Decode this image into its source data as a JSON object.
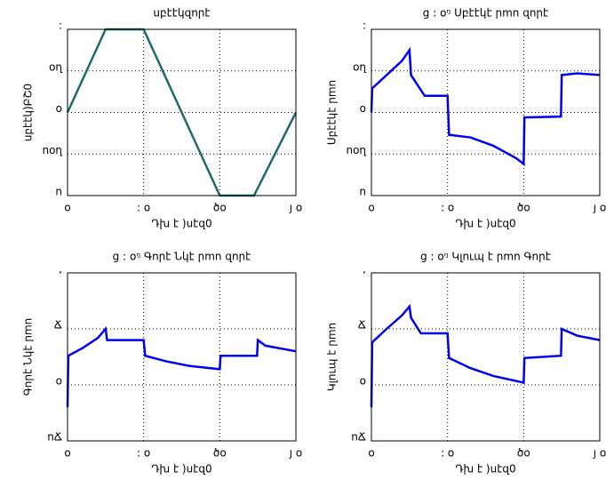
{
  "chart_data": [
    {
      "type": "line",
      "title": "սբէէկզորէ",
      "xlabel": "Դխ է )սէզ0",
      "ylabel": "սբէէկ)ԲՇ0",
      "x": [
        0,
        5,
        10,
        20,
        24.5,
        30
      ],
      "series": [
        {
          "color": "#1f6a6a",
          "values": [
            0,
            1,
            1,
            -1,
            -1,
            0
          ]
        }
      ],
      "xlim": [
        0,
        30
      ],
      "ylim": [
        -1,
        1
      ],
      "xticks": [
        {
          "value": 0,
          "label": "o"
        },
        {
          "value": 10,
          "label": ": o"
        },
        {
          "value": 20,
          "label": "ծo"
        },
        {
          "value": 30,
          "label": "յ o"
        }
      ],
      "yticks": [
        {
          "value": -1,
          "label": "ո"
        },
        {
          "value": -0.5,
          "label": "nօղ"
        },
        {
          "value": 0,
          "label": "o"
        },
        {
          "value": 0.5,
          "label": "օղ"
        },
        {
          "value": 1,
          "label": ":"
        }
      ],
      "grid": true
    },
    {
      "type": "line",
      "title": "g : oᵑ Սբէէկէ րmn զորէ",
      "xlabel": "Դխ է )սէզ0",
      "ylabel": "Սբէէկէ րmn",
      "x": [
        0,
        0.1,
        2,
        4,
        5,
        5.2,
        7,
        10,
        10.2,
        13,
        16,
        19,
        20,
        20.1,
        24.9,
        25,
        27,
        30
      ],
      "series": [
        {
          "color": "#0000ee",
          "values": [
            0,
            0.29,
            0.45,
            0.62,
            0.75,
            0.45,
            0.2,
            0.2,
            -0.27,
            -0.3,
            -0.4,
            -0.55,
            -0.62,
            -0.06,
            -0.05,
            0.45,
            0.47,
            0.45
          ]
        }
      ],
      "xlim": [
        0,
        30
      ],
      "ylim": [
        -1,
        1
      ],
      "xticks": [
        {
          "value": 0,
          "label": "o"
        },
        {
          "value": 10,
          "label": ": o"
        },
        {
          "value": 20,
          "label": "ծo"
        },
        {
          "value": 30,
          "label": "յ o"
        }
      ],
      "yticks": [
        {
          "value": -1,
          "label": "ո"
        },
        {
          "value": -0.5,
          "label": "nօղ"
        },
        {
          "value": 0,
          "label": "o"
        },
        {
          "value": 0.5,
          "label": "օղ"
        },
        {
          "value": 1,
          "label": ":"
        }
      ],
      "grid": true
    },
    {
      "type": "line",
      "title": "g : oᵑ Գորէ Նկէ րmn զորէ",
      "xlabel": "Դխ է )սէզ0",
      "ylabel": "Գորէ Նկէ րmn",
      "x": [
        0,
        0.1,
        2,
        4,
        5,
        5.2,
        10,
        10.2,
        13,
        16,
        20,
        20.1,
        24.9,
        25,
        26,
        30
      ],
      "series": [
        {
          "color": "#0000ee",
          "values": [
            -2,
            2.6,
            3.3,
            4.2,
            5,
            4,
            4,
            2.6,
            2.1,
            1.7,
            1.4,
            2.6,
            2.6,
            4,
            3.5,
            3
          ]
        }
      ],
      "xlim": [
        0,
        30
      ],
      "ylim": [
        -5,
        10
      ],
      "xticks": [
        {
          "value": 0,
          "label": "o"
        },
        {
          "value": 10,
          "label": ": o"
        },
        {
          "value": 20,
          "label": "ծo"
        },
        {
          "value": 30,
          "label": "յ o"
        }
      ],
      "yticks": [
        {
          "value": -5,
          "label": "nՃ"
        },
        {
          "value": 0,
          "label": "o"
        },
        {
          "value": 5,
          "label": "Ճ"
        },
        {
          "value": 10,
          "label": ","
        }
      ],
      "grid": true
    },
    {
      "type": "line",
      "title": "g : oᵑ Կլnւպ է րmn Գորէ",
      "xlabel": "Դխ է )սէզ0",
      "ylabel": "Կլnւպ է րmn",
      "x": [
        0,
        0.1,
        2,
        4,
        5,
        5.2,
        6.5,
        10,
        10.2,
        13,
        16,
        20,
        20.1,
        24.9,
        25,
        27,
        30
      ],
      "series": [
        {
          "color": "#0000ee",
          "values": [
            -2,
            3.8,
            5,
            6.2,
            7,
            6,
            4.6,
            4.6,
            2.4,
            1.5,
            0.8,
            0.2,
            2.4,
            2.6,
            5,
            4.4,
            4
          ]
        }
      ],
      "xlim": [
        0,
        30
      ],
      "ylim": [
        -5,
        10
      ],
      "xticks": [
        {
          "value": 0,
          "label": "o"
        },
        {
          "value": 10,
          "label": ": o"
        },
        {
          "value": 20,
          "label": "ծo"
        },
        {
          "value": 30,
          "label": "յ o"
        }
      ],
      "yticks": [
        {
          "value": -5,
          "label": "nՃ"
        },
        {
          "value": 0,
          "label": "o"
        },
        {
          "value": 5,
          "label": "Ճ"
        },
        {
          "value": 10,
          "label": ","
        }
      ],
      "grid": true
    }
  ]
}
